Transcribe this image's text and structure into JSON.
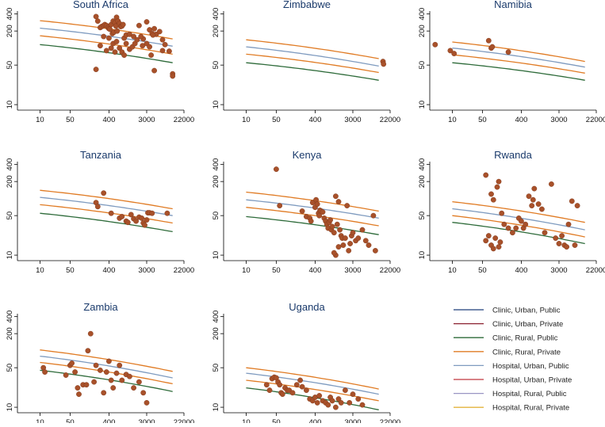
{
  "chart_data": {
    "type": "scatter",
    "layout": "3x3 small multiples (log-log), legend in last cell",
    "x_scale": "log",
    "y_scale": "log",
    "xlim": [
      3,
      22000
    ],
    "ylim": [
      8,
      450
    ],
    "x_ticks": [
      10,
      50,
      400,
      3000,
      22000
    ],
    "y_ticks": [
      10,
      50,
      200,
      400
    ],
    "legend": {
      "placement": "bottom-right",
      "entries": [
        {
          "label": "Clinic, Urban, Public",
          "color": "#1f3f7a"
        },
        {
          "label": "Clinic, Urban, Private",
          "color": "#8b2030"
        },
        {
          "label": "Clinic, Rural, Public",
          "color": "#2e6b3a"
        },
        {
          "label": "Clinic, Rural, Private",
          "color": "#e07b24"
        },
        {
          "label": "Hospital, Urban, Public",
          "color": "#7f9bbf"
        },
        {
          "label": "Hospital, Urban, Private",
          "color": "#c0363f"
        },
        {
          "label": "Hospital, Rural, Public",
          "color": "#9a95c4"
        },
        {
          "label": "Hospital, Rural, Private",
          "color": "#e3b33c"
        }
      ]
    },
    "point_color": "#a8512a",
    "panels": [
      {
        "title": "South Africa",
        "curves": [
          {
            "color": "#2e6b3a",
            "start": 115,
            "end": 55
          },
          {
            "color": "#e07b24",
            "start": 165,
            "end": 78
          },
          {
            "color": "#7f9bbf",
            "start": 225,
            "end": 108
          },
          {
            "color": "#e07b24",
            "start": 305,
            "end": 145
          }
        ],
        "points": [
          [
            200,
            360
          ],
          [
            220,
            300
          ],
          [
            250,
            230
          ],
          [
            270,
            240
          ],
          [
            300,
            250
          ],
          [
            320,
            260
          ],
          [
            350,
            250
          ],
          [
            380,
            230
          ],
          [
            400,
            220
          ],
          [
            420,
            215
          ],
          [
            450,
            260
          ],
          [
            480,
            180
          ],
          [
            500,
            300
          ],
          [
            520,
            190
          ],
          [
            550,
            280
          ],
          [
            580,
            245
          ],
          [
            600,
            350
          ],
          [
            620,
            200
          ],
          [
            650,
            300
          ],
          [
            700,
            270
          ],
          [
            750,
            240
          ],
          [
            800,
            245
          ],
          [
            850,
            260
          ],
          [
            900,
            150
          ],
          [
            1000,
            170
          ],
          [
            1200,
            175
          ],
          [
            1500,
            160
          ],
          [
            2000,
            250
          ],
          [
            2500,
            145
          ],
          [
            3000,
            290
          ],
          [
            3500,
            210
          ],
          [
            4000,
            180
          ],
          [
            4500,
            220
          ],
          [
            5000,
            175
          ],
          [
            6000,
            195
          ],
          [
            7000,
            140
          ],
          [
            8000,
            115
          ],
          [
            10000,
            88
          ],
          [
            250,
            110
          ],
          [
            300,
            160
          ],
          [
            350,
            90
          ],
          [
            400,
            150
          ],
          [
            450,
            100
          ],
          [
            500,
            120
          ],
          [
            550,
            85
          ],
          [
            600,
            130
          ],
          [
            700,
            100
          ],
          [
            800,
            85
          ],
          [
            900,
            75
          ],
          [
            1000,
            120
          ],
          [
            1200,
            95
          ],
          [
            1400,
            105
          ],
          [
            1600,
            120
          ],
          [
            2200,
            160
          ],
          [
            3000,
            120
          ],
          [
            3500,
            105
          ],
          [
            3800,
            75
          ],
          [
            4200,
            170
          ],
          [
            4500,
            40
          ],
          [
            7000,
            90
          ],
          [
            12000,
            35
          ],
          [
            12000,
            32
          ],
          [
            200,
            42
          ],
          [
            1800,
            140
          ],
          [
            2400,
            110
          ]
        ]
      },
      {
        "title": "Zimbabwe",
        "curves": [
          {
            "color": "#2e6b3a",
            "start": 55,
            "end": 27
          },
          {
            "color": "#e07b24",
            "start": 78,
            "end": 37
          },
          {
            "color": "#7f9bbf",
            "start": 105,
            "end": 48
          },
          {
            "color": "#e07b24",
            "start": 140,
            "end": 65
          }
        ],
        "points": [
          [
            15000,
            58
          ],
          [
            15500,
            52
          ]
        ]
      },
      {
        "title": "Namibia",
        "curves": [
          {
            "color": "#2e6b3a",
            "start": 55,
            "end": 27
          },
          {
            "color": "#e07b24",
            "start": 76,
            "end": 36
          },
          {
            "color": "#7f9bbf",
            "start": 100,
            "end": 46
          },
          {
            "color": "#e07b24",
            "start": 128,
            "end": 58
          }
        ],
        "points": [
          [
            4,
            115
          ],
          [
            9,
            90
          ],
          [
            11,
            80
          ],
          [
            70,
            135
          ],
          [
            80,
            100
          ],
          [
            85,
            105
          ],
          [
            200,
            85
          ]
        ]
      },
      {
        "title": "Tanzania",
        "curves": [
          {
            "color": "#2e6b3a",
            "start": 55,
            "end": 26
          },
          {
            "color": "#e07b24",
            "start": 78,
            "end": 37
          },
          {
            "color": "#7f9bbf",
            "start": 105,
            "end": 50
          },
          {
            "color": "#e07b24",
            "start": 140,
            "end": 66
          }
        ],
        "points": [
          [
            300,
            125
          ],
          [
            200,
            85
          ],
          [
            220,
            72
          ],
          [
            450,
            55
          ],
          [
            700,
            45
          ],
          [
            800,
            48
          ],
          [
            1000,
            40
          ],
          [
            1100,
            38
          ],
          [
            1300,
            52
          ],
          [
            1500,
            44
          ],
          [
            1700,
            40
          ],
          [
            2000,
            47
          ],
          [
            2300,
            45
          ],
          [
            2500,
            37
          ],
          [
            2700,
            34
          ],
          [
            3000,
            42
          ],
          [
            3200,
            56
          ],
          [
            3500,
            56
          ],
          [
            4000,
            55
          ],
          [
            9000,
            55
          ]
        ]
      },
      {
        "title": "Kenya",
        "curves": [
          {
            "color": "#2e6b3a",
            "start": 48,
            "end": 23
          },
          {
            "color": "#e07b24",
            "start": 70,
            "end": 33
          },
          {
            "color": "#7f9bbf",
            "start": 95,
            "end": 45
          },
          {
            "color": "#e07b24",
            "start": 130,
            "end": 60
          }
        ],
        "points": [
          [
            50,
            330
          ],
          [
            60,
            75
          ],
          [
            200,
            60
          ],
          [
            250,
            48
          ],
          [
            300,
            45
          ],
          [
            320,
            40
          ],
          [
            350,
            85
          ],
          [
            400,
            70
          ],
          [
            420,
            95
          ],
          [
            450,
            80
          ],
          [
            480,
            55
          ],
          [
            500,
            50
          ],
          [
            520,
            62
          ],
          [
            550,
            60
          ],
          [
            600,
            58
          ],
          [
            650,
            45
          ],
          [
            700,
            40
          ],
          [
            750,
            35
          ],
          [
            800,
            30
          ],
          [
            850,
            38
          ],
          [
            900,
            42
          ],
          [
            950,
            28
          ],
          [
            1000,
            32
          ],
          [
            1100,
            25
          ],
          [
            1200,
            110
          ],
          [
            1300,
            35
          ],
          [
            1400,
            88
          ],
          [
            1500,
            28
          ],
          [
            1600,
            22
          ],
          [
            1700,
            20
          ],
          [
            1800,
            15
          ],
          [
            2000,
            20
          ],
          [
            2200,
            75
          ],
          [
            2400,
            12
          ],
          [
            2600,
            16
          ],
          [
            2800,
            22
          ],
          [
            3000,
            25
          ],
          [
            3500,
            18
          ],
          [
            4000,
            20
          ],
          [
            5000,
            28
          ],
          [
            6000,
            18
          ],
          [
            9000,
            50
          ],
          [
            7000,
            15
          ],
          [
            10000,
            12
          ],
          [
            1200,
            10
          ],
          [
            1100,
            11
          ],
          [
            1400,
            14
          ]
        ]
      },
      {
        "title": "Rwanda",
        "curves": [
          {
            "color": "#2e6b3a",
            "start": 38,
            "end": 16
          },
          {
            "color": "#e07b24",
            "start": 50,
            "end": 21
          },
          {
            "color": "#7f9bbf",
            "start": 66,
            "end": 28
          },
          {
            "color": "#e07b24",
            "start": 88,
            "end": 38
          }
        ],
        "points": [
          [
            60,
            260
          ],
          [
            80,
            120
          ],
          [
            90,
            95
          ],
          [
            110,
            160
          ],
          [
            120,
            200
          ],
          [
            140,
            55
          ],
          [
            160,
            35
          ],
          [
            200,
            30
          ],
          [
            250,
            25
          ],
          [
            300,
            30
          ],
          [
            350,
            45
          ],
          [
            400,
            40
          ],
          [
            450,
            30
          ],
          [
            500,
            35
          ],
          [
            600,
            110
          ],
          [
            700,
            75
          ],
          [
            750,
            95
          ],
          [
            800,
            150
          ],
          [
            1000,
            80
          ],
          [
            1200,
            65
          ],
          [
            1400,
            25
          ],
          [
            2000,
            180
          ],
          [
            2500,
            20
          ],
          [
            3000,
            16
          ],
          [
            3500,
            22
          ],
          [
            4000,
            15
          ],
          [
            4500,
            14
          ],
          [
            5000,
            35
          ],
          [
            6000,
            90
          ],
          [
            7000,
            15
          ],
          [
            8000,
            75
          ],
          [
            60,
            18
          ],
          [
            70,
            22
          ],
          [
            80,
            15
          ],
          [
            90,
            13
          ],
          [
            100,
            20
          ],
          [
            120,
            14
          ],
          [
            130,
            17
          ]
        ]
      },
      {
        "title": "Zambia",
        "curves": [
          {
            "color": "#2e6b3a",
            "start": 45,
            "end": 19
          },
          {
            "color": "#e07b24",
            "start": 62,
            "end": 26
          },
          {
            "color": "#7f9bbf",
            "start": 80,
            "end": 33
          },
          {
            "color": "#e07b24",
            "start": 103,
            "end": 43
          }
        ],
        "points": [
          [
            12,
            50
          ],
          [
            13,
            42
          ],
          [
            40,
            37
          ],
          [
            50,
            55
          ],
          [
            55,
            60
          ],
          [
            65,
            42
          ],
          [
            75,
            22
          ],
          [
            80,
            17
          ],
          [
            100,
            25
          ],
          [
            120,
            25
          ],
          [
            130,
            100
          ],
          [
            150,
            200
          ],
          [
            180,
            28
          ],
          [
            200,
            55
          ],
          [
            250,
            45
          ],
          [
            300,
            18
          ],
          [
            350,
            42
          ],
          [
            400,
            65
          ],
          [
            450,
            30
          ],
          [
            500,
            22
          ],
          [
            600,
            40
          ],
          [
            700,
            55
          ],
          [
            800,
            30
          ],
          [
            1000,
            38
          ],
          [
            1200,
            35
          ],
          [
            1500,
            22
          ],
          [
            2000,
            28
          ],
          [
            2500,
            18
          ],
          [
            3000,
            12
          ]
        ]
      },
      {
        "title": "Uganda",
        "curves": [
          {
            "color": "#2e6b3a",
            "start": 22,
            "end": 9
          },
          {
            "color": "#e07b24",
            "start": 30,
            "end": 13
          },
          {
            "color": "#7f9bbf",
            "start": 40,
            "end": 17
          },
          {
            "color": "#e07b24",
            "start": 50,
            "end": 21
          }
        ],
        "points": [
          [
            30,
            25
          ],
          [
            35,
            20
          ],
          [
            40,
            32
          ],
          [
            45,
            34
          ],
          [
            50,
            33
          ],
          [
            55,
            28
          ],
          [
            60,
            25
          ],
          [
            65,
            18
          ],
          [
            70,
            17
          ],
          [
            80,
            22
          ],
          [
            90,
            20
          ],
          [
            100,
            20
          ],
          [
            120,
            18
          ],
          [
            150,
            25
          ],
          [
            180,
            30
          ],
          [
            200,
            23
          ],
          [
            250,
            20
          ],
          [
            300,
            14
          ],
          [
            350,
            13
          ],
          [
            400,
            15
          ],
          [
            450,
            12
          ],
          [
            500,
            16
          ],
          [
            600,
            13
          ],
          [
            700,
            12
          ],
          [
            800,
            11
          ],
          [
            900,
            15
          ],
          [
            1000,
            13
          ],
          [
            1200,
            10
          ],
          [
            1400,
            14
          ],
          [
            1600,
            12
          ],
          [
            2000,
            20
          ],
          [
            2500,
            12
          ],
          [
            3000,
            17
          ],
          [
            4000,
            14
          ],
          [
            5000,
            11
          ]
        ]
      }
    ]
  }
}
